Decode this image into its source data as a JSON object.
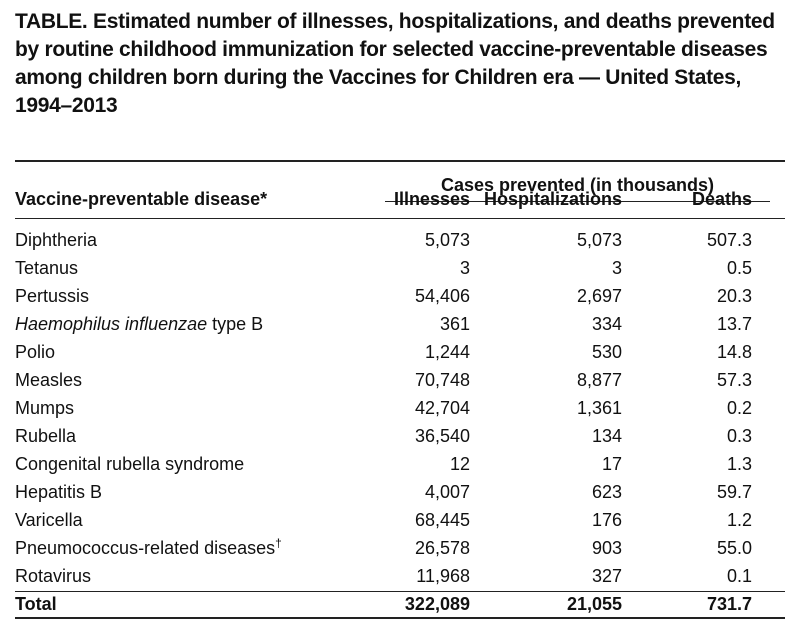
{
  "title": "TABLE. Estimated number of illnesses, hospitalizations, and deaths prevented by routine childhood immunization for selected vaccine-preventable diseases among children born during the Vaccines for Children era — United States, 1994–2013",
  "table": {
    "group_header": "Cases prevented (in thousands)",
    "columns": [
      "Vaccine-preventable disease*",
      "Illnesses",
      "Hospitalizations",
      "Deaths"
    ],
    "rows": [
      {
        "name": [
          "Diphtheria"
        ],
        "values": [
          "5,073",
          "5,073",
          "507.3"
        ]
      },
      {
        "name": [
          "Tetanus"
        ],
        "values": [
          "3",
          "3",
          "0.5"
        ]
      },
      {
        "name": [
          "Pertussis"
        ],
        "values": [
          "54,406",
          "2,697",
          "20.3"
        ]
      },
      {
        "name": [
          "Haemophilus influenzae",
          "type B"
        ],
        "values": [
          "361",
          "334",
          "13.7"
        ]
      },
      {
        "name": [
          "Polio"
        ],
        "values": [
          "1,244",
          "530",
          "14.8"
        ]
      },
      {
        "name": [
          "Measles"
        ],
        "values": [
          "70,748",
          "8,877",
          "57.3"
        ]
      },
      {
        "name": [
          "Mumps"
        ],
        "values": [
          "42,704",
          "1,361",
          "0.2"
        ]
      },
      {
        "name": [
          "Rubella"
        ],
        "values": [
          "36,540",
          "134",
          "0.3"
        ]
      },
      {
        "name": [
          "Congenital rubella syndrome"
        ],
        "values": [
          "12",
          "17",
          "1.3"
        ]
      },
      {
        "name": [
          "Hepatitis B"
        ],
        "values": [
          "4,007",
          "623",
          "59.7"
        ]
      },
      {
        "name": [
          "Varicella"
        ],
        "values": [
          "68,445",
          "176",
          "1.2"
        ]
      },
      {
        "name": [
          "Pneumococcus-related diseases",
          "†"
        ],
        "values": [
          "26,578",
          "903",
          "55.0"
        ]
      },
      {
        "name": [
          "Rotavirus"
        ],
        "values": [
          "11,968",
          "327",
          "0.1"
        ]
      }
    ],
    "total": {
      "name": [
        "Total"
      ],
      "values": [
        "322,089",
        "21,055",
        "731.7"
      ]
    }
  }
}
